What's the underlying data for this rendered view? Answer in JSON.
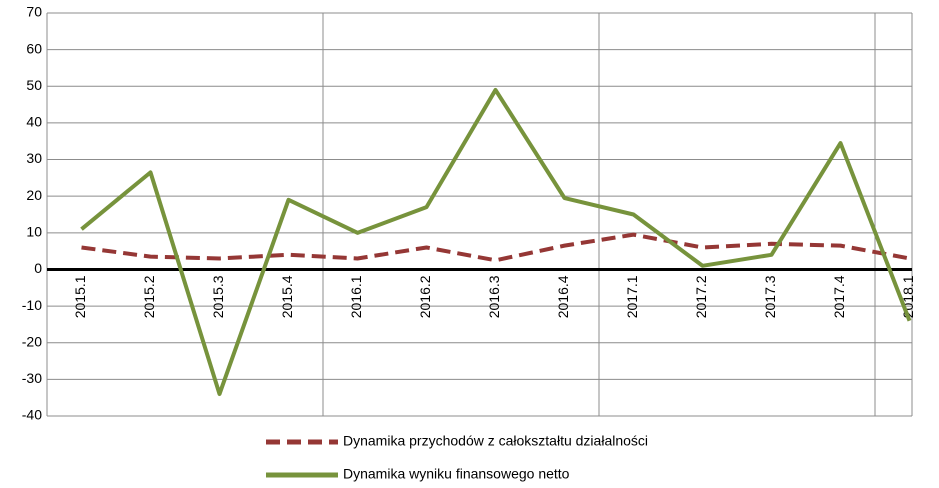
{
  "chart_data": {
    "type": "line",
    "categories": [
      "2015.1",
      "2015.2",
      "2015.3",
      "2015.4",
      "2016.1",
      "2016.2",
      "2016.3",
      "2016.4",
      "2017.1",
      "2017.2",
      "2017.3",
      "2017.4",
      "2018.1"
    ],
    "series": [
      {
        "name": "Dynamika przychodów z całokształtu działalności",
        "color": "#953735",
        "dash": true,
        "values": [
          6,
          3.5,
          3,
          4,
          3,
          6,
          2.5,
          6.5,
          9.5,
          6,
          7,
          6.5,
          3
        ]
      },
      {
        "name": "Dynamika wyniku finansowego netto",
        "color": "#77933c",
        "dash": false,
        "values": [
          11,
          26.5,
          -34,
          19,
          10,
          17,
          49,
          19.5,
          15,
          1,
          4,
          34.5,
          -14
        ]
      }
    ],
    "ylim": [
      -40,
      70
    ],
    "yticks": [
      -40,
      -30,
      -20,
      -10,
      0,
      10,
      20,
      30,
      40,
      50,
      60,
      70
    ],
    "grid": true,
    "legend": "bottom"
  }
}
